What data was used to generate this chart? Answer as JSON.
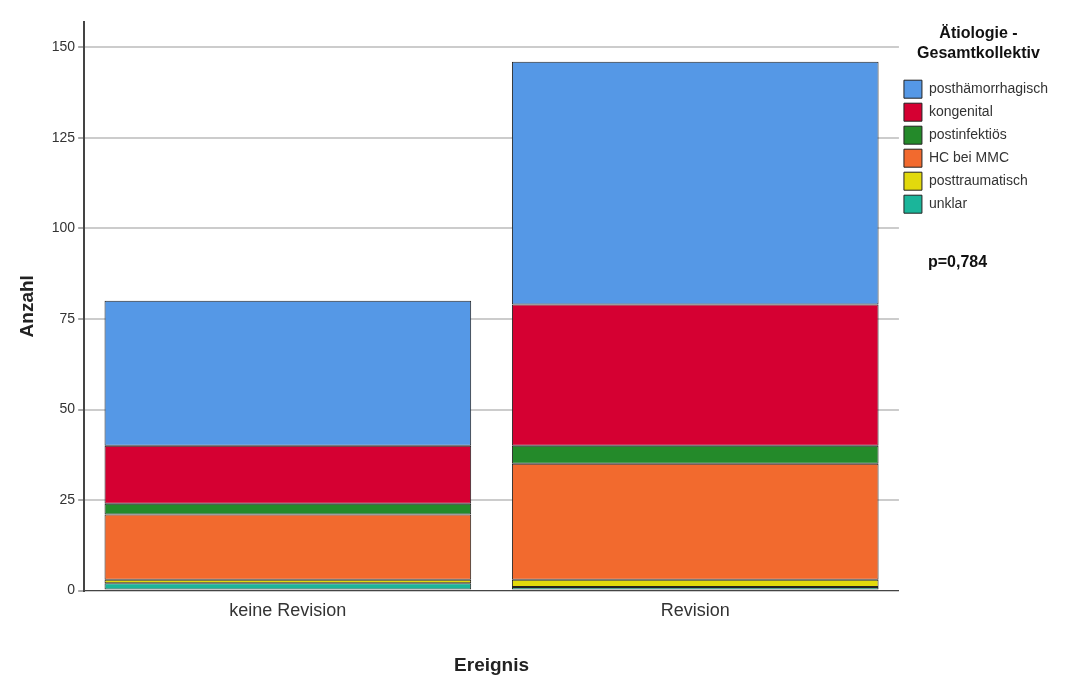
{
  "chart_data": {
    "type": "bar",
    "stacked": true,
    "xlabel": "Ereignis",
    "ylabel": "Anzahl",
    "legend_title": "Ätiologie -\nGesamtkollektiv",
    "annotations": [
      "p=0,784"
    ],
    "categories": [
      "keine Revision",
      "Revision"
    ],
    "series": [
      {
        "name": "unklar",
        "color": "#1bb59a",
        "values": [
          2,
          1
        ]
      },
      {
        "name": "posttraumatisch",
        "color": "#e2d90c",
        "values": [
          1,
          2
        ]
      },
      {
        "name": "HC bei MMC",
        "color": "#f26a2e",
        "values": [
          18,
          32
        ]
      },
      {
        "name": "postinfektiös",
        "color": "#248a2a",
        "values": [
          3,
          5
        ]
      },
      {
        "name": "kongenital",
        "color": "#d50032",
        "values": [
          16,
          39
        ]
      },
      {
        "name": "posthämorrhagisch",
        "color": "#5598e6",
        "values": [
          40,
          67
        ]
      }
    ],
    "ylim": [
      0,
      157
    ],
    "yticks": [
      0,
      25,
      50,
      75,
      100,
      125,
      150
    ],
    "grid": "y",
    "legend": "top right"
  }
}
